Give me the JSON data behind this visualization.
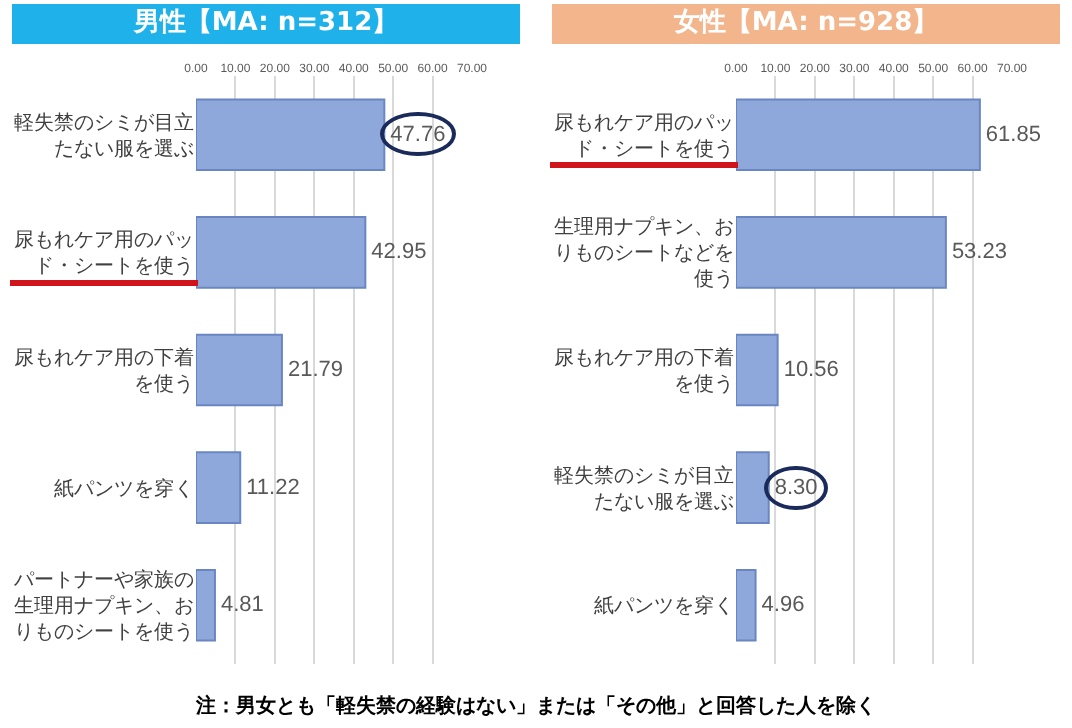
{
  "chart_data": [
    {
      "type": "bar",
      "orientation": "horizontal",
      "title": "男性【MA: n=312】",
      "categories": [
        "軽失禁のシミが目立たない服を選ぶ",
        "尿もれケア用のパッド・シートを使う",
        "尿もれケア用の下着を使う",
        "紙パンツを穿く",
        "パートナーや家族の生理用ナプキン、おりものシートを使う"
      ],
      "values": [
        47.76,
        42.95,
        21.79,
        11.22,
        4.81
      ],
      "value_labels": [
        "47.76",
        "42.95",
        "21.79",
        "11.22",
        "4.81"
      ],
      "color": "#8ea8db",
      "xlim": [
        0,
        70
      ],
      "xticks": [
        {
          "value": 0,
          "label": "0.00"
        },
        {
          "value": 10,
          "label": "10.00"
        },
        {
          "value": 20,
          "label": "20.00"
        },
        {
          "value": 30,
          "label": "30.00"
        },
        {
          "value": 40,
          "label": "40.00"
        },
        {
          "value": 50,
          "label": "50.00"
        },
        {
          "value": 60,
          "label": "60.00"
        },
        {
          "value": 70,
          "label": "70.00"
        }
      ],
      "grid": "x"
    },
    {
      "type": "bar",
      "orientation": "horizontal",
      "title": "女性【MA: n=928】",
      "categories": [
        "尿もれケア用のパッド・シートを使う",
        "生理用ナプキン、おりものシートなどを使う",
        "尿もれケア用の下着を使う",
        "軽失禁のシミが目立たない服を選ぶ",
        "紙パンツを穿く"
      ],
      "values": [
        61.85,
        53.23,
        10.56,
        8.3,
        4.96
      ],
      "value_labels": [
        "61.85",
        "53.23",
        "10.56",
        "8.30",
        "4.96"
      ],
      "color": "#8ea8db",
      "xlim": [
        0,
        70
      ],
      "xticks": [
        {
          "value": 0,
          "label": "0.00"
        },
        {
          "value": 10,
          "label": "10.00"
        },
        {
          "value": 20,
          "label": "20.00"
        },
        {
          "value": 30,
          "label": "30.00"
        },
        {
          "value": 40,
          "label": "40.00"
        },
        {
          "value": 50,
          "label": "50.00"
        },
        {
          "value": 60,
          "label": "60.00"
        },
        {
          "value": 70,
          "label": "70.00"
        }
      ],
      "grid": "x",
      "annotations": [
        "注：男女とも「軽失禁の経験はない」または「その他」と回答した人を除く"
      ]
    }
  ]
}
